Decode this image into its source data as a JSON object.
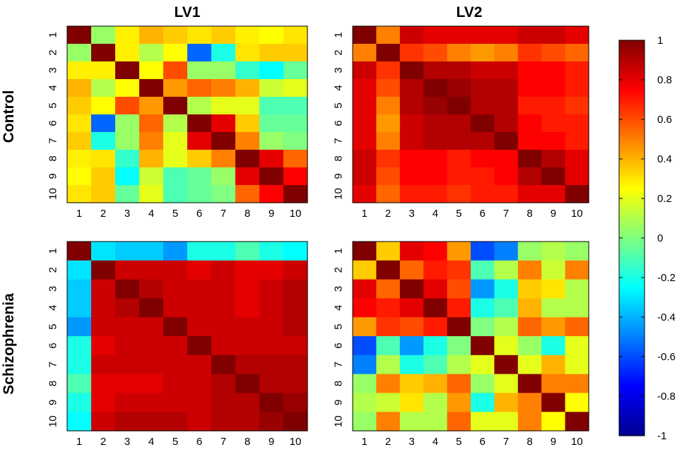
{
  "figure": {
    "col_titles": [
      "LV1",
      "LV2"
    ],
    "row_titles": [
      "Control",
      "Schizophrenia"
    ]
  },
  "colorbar": {
    "min": -1,
    "max": 1,
    "ticks": [
      "1",
      "0.8",
      "0.6",
      "0.4",
      "0.2",
      "0",
      "-0.2",
      "-0.4",
      "-0.6",
      "-0.8",
      "-1"
    ],
    "colormap": "jet"
  },
  "chart_data": [
    {
      "type": "heatmap",
      "name": "control-lv1",
      "row": "Control",
      "col": "LV1",
      "x": [
        "1",
        "2",
        "3",
        "4",
        "5",
        "6",
        "7",
        "8",
        "9",
        "10"
      ],
      "y": [
        "1",
        "2",
        "3",
        "4",
        "5",
        "6",
        "7",
        "8",
        "9",
        "10"
      ],
      "zlim": [
        -1,
        1
      ],
      "values": [
        [
          1.0,
          0.05,
          0.28,
          0.4,
          0.35,
          0.3,
          0.35,
          0.28,
          0.25,
          0.3
        ],
        [
          0.05,
          1.0,
          0.28,
          0.1,
          0.25,
          -0.55,
          -0.2,
          0.3,
          0.35,
          0.35
        ],
        [
          0.28,
          0.28,
          1.0,
          0.25,
          0.6,
          0.05,
          0.05,
          -0.15,
          -0.25,
          -0.05
        ],
        [
          0.4,
          0.1,
          0.25,
          1.0,
          0.45,
          0.55,
          0.5,
          0.4,
          0.15,
          0.2
        ],
        [
          0.35,
          0.25,
          0.6,
          0.45,
          1.0,
          0.1,
          0.2,
          0.2,
          -0.1,
          -0.1
        ],
        [
          0.3,
          -0.55,
          0.05,
          0.55,
          0.1,
          1.0,
          0.8,
          0.35,
          -0.05,
          -0.05
        ],
        [
          0.35,
          -0.2,
          0.05,
          0.5,
          0.2,
          0.8,
          1.0,
          0.5,
          0.05,
          0.0
        ],
        [
          0.28,
          0.3,
          -0.15,
          0.4,
          0.2,
          0.35,
          0.5,
          1.0,
          0.8,
          0.55
        ],
        [
          0.25,
          0.35,
          -0.25,
          0.15,
          -0.1,
          -0.05,
          0.05,
          0.8,
          1.0,
          0.75
        ],
        [
          0.3,
          0.35,
          -0.05,
          0.2,
          -0.1,
          -0.05,
          0.0,
          0.55,
          0.75,
          1.0
        ]
      ]
    },
    {
      "type": "heatmap",
      "name": "control-lv2",
      "row": "Control",
      "col": "LV2",
      "x": [
        "1",
        "2",
        "3",
        "4",
        "5",
        "6",
        "7",
        "8",
        "9",
        "10"
      ],
      "y": [
        "1",
        "2",
        "3",
        "4",
        "5",
        "6",
        "7",
        "8",
        "9",
        "10"
      ],
      "zlim": [
        -1,
        1
      ],
      "values": [
        [
          1.0,
          0.5,
          0.85,
          0.8,
          0.8,
          0.8,
          0.8,
          0.85,
          0.85,
          0.8
        ],
        [
          0.5,
          1.0,
          0.65,
          0.6,
          0.5,
          0.45,
          0.5,
          0.65,
          0.6,
          0.55
        ],
        [
          0.85,
          0.65,
          1.0,
          0.9,
          0.9,
          0.85,
          0.85,
          0.75,
          0.75,
          0.7
        ],
        [
          0.8,
          0.6,
          0.9,
          1.0,
          0.95,
          0.9,
          0.9,
          0.75,
          0.75,
          0.7
        ],
        [
          0.8,
          0.5,
          0.9,
          0.95,
          1.0,
          0.9,
          0.9,
          0.7,
          0.7,
          0.65
        ],
        [
          0.8,
          0.45,
          0.85,
          0.9,
          0.9,
          1.0,
          0.9,
          0.75,
          0.7,
          0.7
        ],
        [
          0.8,
          0.5,
          0.85,
          0.9,
          0.9,
          0.9,
          1.0,
          0.75,
          0.75,
          0.7
        ],
        [
          0.85,
          0.65,
          0.75,
          0.75,
          0.7,
          0.75,
          0.75,
          1.0,
          0.9,
          0.8
        ],
        [
          0.85,
          0.6,
          0.75,
          0.75,
          0.7,
          0.7,
          0.75,
          0.9,
          1.0,
          0.8
        ],
        [
          0.8,
          0.55,
          0.7,
          0.7,
          0.65,
          0.7,
          0.7,
          0.8,
          0.8,
          1.0
        ]
      ]
    },
    {
      "type": "heatmap",
      "name": "schizophrenia-lv1",
      "row": "Schizophrenia",
      "col": "LV1",
      "x": [
        "1",
        "2",
        "3",
        "4",
        "5",
        "6",
        "7",
        "8",
        "9",
        "10"
      ],
      "y": [
        "1",
        "2",
        "3",
        "4",
        "5",
        "6",
        "7",
        "8",
        "9",
        "10"
      ],
      "zlim": [
        -1,
        1
      ],
      "values": [
        [
          1.0,
          -0.3,
          -0.35,
          -0.35,
          -0.45,
          -0.2,
          -0.2,
          -0.1,
          -0.2,
          -0.25
        ],
        [
          -0.3,
          1.0,
          0.85,
          0.85,
          0.85,
          0.8,
          0.85,
          0.8,
          0.8,
          0.85
        ],
        [
          -0.35,
          0.85,
          1.0,
          0.9,
          0.85,
          0.85,
          0.85,
          0.8,
          0.85,
          0.9
        ],
        [
          -0.35,
          0.85,
          0.9,
          1.0,
          0.85,
          0.85,
          0.85,
          0.8,
          0.85,
          0.9
        ],
        [
          -0.45,
          0.85,
          0.85,
          0.85,
          1.0,
          0.85,
          0.85,
          0.85,
          0.85,
          0.9
        ],
        [
          -0.2,
          0.8,
          0.85,
          0.85,
          0.85,
          1.0,
          0.85,
          0.85,
          0.85,
          0.85
        ],
        [
          -0.2,
          0.85,
          0.85,
          0.85,
          0.85,
          0.85,
          1.0,
          0.9,
          0.9,
          0.9
        ],
        [
          -0.1,
          0.8,
          0.8,
          0.8,
          0.85,
          0.85,
          0.9,
          1.0,
          0.9,
          0.9
        ],
        [
          -0.2,
          0.8,
          0.85,
          0.85,
          0.85,
          0.85,
          0.9,
          0.9,
          1.0,
          0.95
        ],
        [
          -0.25,
          0.85,
          0.9,
          0.9,
          0.9,
          0.85,
          0.9,
          0.9,
          0.95,
          1.0
        ]
      ]
    },
    {
      "type": "heatmap",
      "name": "schizophrenia-lv2",
      "row": "Schizophrenia",
      "col": "LV2",
      "x": [
        "1",
        "2",
        "3",
        "4",
        "5",
        "6",
        "7",
        "8",
        "9",
        "10"
      ],
      "y": [
        "1",
        "2",
        "3",
        "4",
        "5",
        "6",
        "7",
        "8",
        "9",
        "10"
      ],
      "zlim": [
        -1,
        1
      ],
      "values": [
        [
          1.0,
          0.35,
          0.8,
          0.75,
          0.45,
          -0.6,
          -0.5,
          0.05,
          0.1,
          0.05
        ],
        [
          0.35,
          1.0,
          0.55,
          0.7,
          0.65,
          -0.1,
          0.1,
          0.5,
          0.15,
          0.5
        ],
        [
          0.8,
          0.55,
          1.0,
          0.8,
          0.6,
          -0.45,
          -0.2,
          0.35,
          0.3,
          0.1
        ],
        [
          0.75,
          0.7,
          0.8,
          1.0,
          0.7,
          -0.2,
          -0.1,
          0.4,
          0.1,
          0.1
        ],
        [
          0.45,
          0.65,
          0.6,
          0.7,
          1.0,
          0.0,
          0.1,
          0.55,
          0.45,
          0.55
        ],
        [
          -0.6,
          -0.1,
          -0.45,
          -0.2,
          0.0,
          1.0,
          0.2,
          0.05,
          -0.2,
          0.2
        ],
        [
          -0.5,
          0.1,
          -0.2,
          -0.1,
          0.1,
          0.2,
          1.0,
          0.2,
          0.4,
          0.2
        ],
        [
          0.05,
          0.5,
          0.35,
          0.4,
          0.55,
          0.05,
          0.2,
          1.0,
          0.5,
          0.5
        ],
        [
          0.1,
          0.15,
          0.3,
          0.1,
          0.45,
          -0.2,
          0.4,
          0.5,
          1.0,
          0.25
        ],
        [
          0.05,
          0.5,
          0.1,
          0.1,
          0.55,
          0.2,
          0.2,
          0.5,
          0.25,
          1.0
        ]
      ]
    }
  ]
}
